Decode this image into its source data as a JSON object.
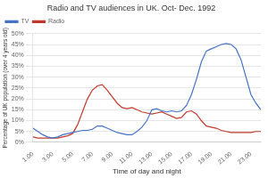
{
  "chart_data": {
    "type": "line",
    "title": "Radio and TV audiences in UK. Oct- Dec. 1992",
    "xlabel": "Time of day and night",
    "ylabel": "Percentage of UK population (over 4 years old)",
    "x": [
      1.0,
      1.5,
      2.0,
      2.5,
      3.0,
      3.5,
      4.0,
      4.5,
      5.0,
      5.5,
      6.0,
      6.5,
      7.0,
      7.5,
      8.0,
      8.5,
      9.0,
      9.5,
      10.0,
      10.5,
      11.0,
      11.5,
      12.0,
      12.5,
      13.0,
      13.5,
      14.0,
      14.5,
      15.0,
      15.5,
      16.0,
      16.5,
      17.0,
      17.5,
      18.0,
      18.5,
      19.0,
      19.5,
      20.0,
      20.5,
      21.0,
      21.5,
      22.0,
      22.5,
      23.0,
      23.5,
      24.0
    ],
    "series": [
      {
        "name": "TV",
        "color": "#4472C4",
        "values": [
          6.5,
          5.0,
          3.5,
          2.5,
          2.0,
          2.5,
          3.5,
          4.0,
          4.5,
          5.0,
          5.5,
          5.5,
          6.0,
          7.5,
          7.5,
          6.5,
          5.5,
          4.5,
          4.0,
          3.5,
          3.5,
          5.0,
          7.0,
          10.0,
          15.0,
          15.5,
          14.5,
          14.0,
          14.5,
          14.0,
          14.5,
          17.0,
          22.0,
          29.0,
          37.0,
          42.0,
          43.0,
          44.0,
          45.0,
          45.5,
          45.0,
          43.0,
          38.0,
          30.0,
          22.0,
          18.0,
          15.0
        ]
      },
      {
        "name": "Radio",
        "color": "#C0392B",
        "values": [
          2.5,
          2.0,
          2.0,
          2.0,
          2.0,
          2.0,
          2.5,
          3.0,
          4.0,
          8.0,
          14.0,
          20.0,
          24.0,
          26.0,
          26.5,
          24.0,
          21.0,
          18.0,
          16.0,
          15.5,
          16.0,
          15.0,
          14.0,
          13.5,
          13.0,
          13.5,
          14.0,
          13.0,
          12.0,
          11.0,
          11.5,
          14.0,
          14.5,
          13.0,
          10.0,
          7.5,
          7.0,
          6.5,
          5.5,
          5.0,
          4.5,
          4.5,
          4.5,
          4.5,
          4.5,
          5.0,
          5.0
        ]
      }
    ],
    "xlim": [
      1,
      24
    ],
    "xticks": [
      {
        "value": 1,
        "label": "1.00"
      },
      {
        "value": 3,
        "label": "3.00"
      },
      {
        "value": 5,
        "label": "5.00"
      },
      {
        "value": 7,
        "label": "7.00"
      },
      {
        "value": 9,
        "label": "9.00"
      },
      {
        "value": 11,
        "label": "11.00"
      },
      {
        "value": 13,
        "label": "13.00"
      },
      {
        "value": 15,
        "label": "15.00"
      },
      {
        "value": 17,
        "label": "17.00"
      },
      {
        "value": 19,
        "label": "19.00"
      },
      {
        "value": 21,
        "label": "21.00"
      },
      {
        "value": 23,
        "label": "23.00"
      }
    ],
    "ylim": [
      0,
      50
    ],
    "yticks": [
      {
        "value": 0,
        "label": "0%"
      },
      {
        "value": 5,
        "label": "5%"
      },
      {
        "value": 10,
        "label": "10%"
      },
      {
        "value": 15,
        "label": "15%"
      },
      {
        "value": 20,
        "label": "20%"
      },
      {
        "value": 25,
        "label": "25%"
      },
      {
        "value": 30,
        "label": "30%"
      },
      {
        "value": 35,
        "label": "35%"
      },
      {
        "value": 40,
        "label": "40%"
      },
      {
        "value": 45,
        "label": "45%"
      },
      {
        "value": 50,
        "label": "50%"
      }
    ],
    "grid": "y",
    "legend": "upper left"
  }
}
